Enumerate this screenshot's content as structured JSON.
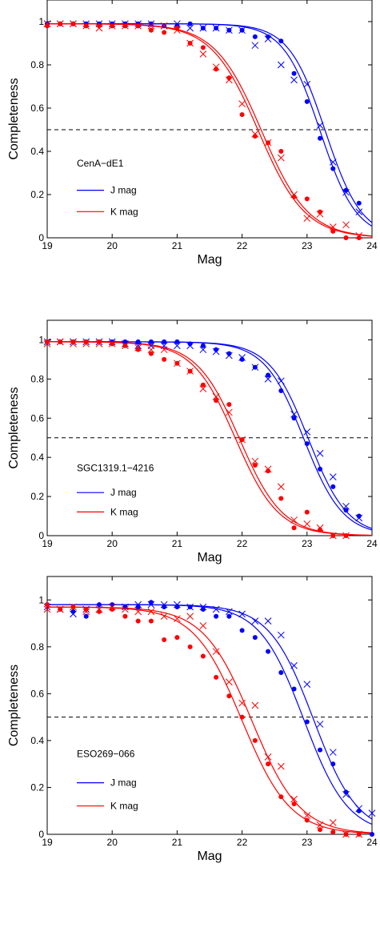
{
  "chart_data": [
    {
      "type": "scatter",
      "annotation": "CenA−dE1",
      "xlabel": "Mag",
      "ylabel": "Completeness",
      "xlim": [
        19,
        24
      ],
      "ylim": [
        0,
        1.1
      ],
      "xticks": [
        "19",
        "20",
        "21",
        "22",
        "23",
        "24"
      ],
      "yticks": [
        "0",
        "0.2",
        "0.4",
        "0.6",
        "0.8",
        "1"
      ],
      "reference_line_y": 0.5,
      "legend": [
        "J mag",
        "K mag"
      ],
      "colors": {
        "J": "#0000ff",
        "K": "#ff0000",
        "ref": "#000000"
      },
      "series": [
        {
          "name": "J mag",
          "color": "#0000ff",
          "marker": "dot",
          "x": [
            19.0,
            19.2,
            19.4,
            19.6,
            19.8,
            20.0,
            20.2,
            20.4,
            20.6,
            20.8,
            21.0,
            21.2,
            21.4,
            21.6,
            21.8,
            22.0,
            22.2,
            22.4,
            22.6,
            22.8,
            23.0,
            23.2,
            23.4,
            23.6,
            23.8
          ],
          "y": [
            0.99,
            0.99,
            0.99,
            0.99,
            0.99,
            0.99,
            0.99,
            0.99,
            0.99,
            0.98,
            0.98,
            0.99,
            0.97,
            0.97,
            0.96,
            0.96,
            0.93,
            0.93,
            0.91,
            0.76,
            0.63,
            0.46,
            0.32,
            0.22,
            0.16
          ]
        },
        {
          "name": "J mag",
          "color": "#0000ff",
          "marker": "cross",
          "x": [
            19.0,
            19.2,
            19.4,
            19.6,
            19.8,
            20.0,
            20.2,
            20.4,
            20.6,
            20.8,
            21.0,
            21.2,
            21.4,
            21.6,
            21.8,
            22.0,
            22.2,
            22.4,
            22.6,
            22.8,
            23.0,
            23.2,
            23.4,
            23.6,
            23.8
          ],
          "y": [
            0.99,
            0.99,
            0.99,
            0.99,
            0.99,
            0.99,
            0.99,
            0.99,
            0.99,
            0.98,
            0.99,
            0.97,
            0.97,
            0.97,
            0.96,
            0.96,
            0.89,
            0.92,
            0.8,
            0.73,
            0.71,
            0.52,
            0.35,
            0.21,
            0.12
          ]
        },
        {
          "name": "K mag",
          "color": "#ff0000",
          "marker": "dot",
          "x": [
            19.0,
            19.2,
            19.4,
            19.6,
            19.8,
            20.0,
            20.2,
            20.4,
            20.6,
            20.8,
            21.0,
            21.2,
            21.4,
            21.6,
            21.8,
            22.0,
            22.2,
            22.4,
            22.6,
            22.8,
            23.0,
            23.2,
            23.4,
            23.6,
            23.8
          ],
          "y": [
            0.98,
            0.99,
            0.99,
            0.98,
            0.98,
            0.98,
            0.98,
            0.98,
            0.96,
            0.95,
            0.97,
            0.9,
            0.88,
            0.78,
            0.74,
            0.57,
            0.47,
            0.44,
            0.4,
            0.19,
            0.18,
            0.12,
            0.03,
            0.0,
            0.0
          ]
        },
        {
          "name": "K mag",
          "color": "#ff0000",
          "marker": "cross",
          "x": [
            19.0,
            19.2,
            19.4,
            19.6,
            19.8,
            20.0,
            20.2,
            20.4,
            20.6,
            20.8,
            21.0,
            21.2,
            21.4,
            21.6,
            21.8,
            22.0,
            22.2,
            22.4,
            22.6,
            22.8,
            23.0,
            23.2,
            23.4,
            23.6,
            23.8
          ],
          "y": [
            0.99,
            0.99,
            0.99,
            0.98,
            0.97,
            0.98,
            0.98,
            0.98,
            0.98,
            0.98,
            0.96,
            0.9,
            0.85,
            0.79,
            0.73,
            0.62,
            0.48,
            0.44,
            0.37,
            0.2,
            0.09,
            0.11,
            0.05,
            0.06,
            0.01
          ]
        }
      ],
      "fits": [
        {
          "name": "J mag",
          "color": "#0000ff",
          "curves": [
            {
              "m50": 23.2,
              "w": 0.28,
              "a": 0.99
            },
            {
              "m50": 23.28,
              "w": 0.28,
              "a": 0.99
            }
          ]
        },
        {
          "name": "K mag",
          "color": "#ff0000",
          "curves": [
            {
              "m50": 22.25,
              "w": 0.36,
              "a": 0.99
            },
            {
              "m50": 22.3,
              "w": 0.36,
              "a": 0.99
            }
          ]
        }
      ]
    },
    {
      "type": "scatter",
      "annotation": "SGC1319.1−4216",
      "xlabel": "Mag",
      "ylabel": "Completeness",
      "xlim": [
        19,
        24
      ],
      "ylim": [
        0,
        1.1
      ],
      "xticks": [
        "19",
        "20",
        "21",
        "22",
        "23",
        "24"
      ],
      "yticks": [
        "0",
        "0.2",
        "0.4",
        "0.6",
        "0.8",
        "1"
      ],
      "reference_line_y": 0.5,
      "legend": [
        "J mag",
        "K mag"
      ],
      "colors": {
        "J": "#0000ff",
        "K": "#ff0000",
        "ref": "#000000"
      },
      "series": [
        {
          "name": "J mag",
          "color": "#0000ff",
          "marker": "dot",
          "x": [
            19.0,
            19.2,
            19.4,
            19.6,
            19.8,
            20.0,
            20.2,
            20.4,
            20.6,
            20.8,
            21.0,
            21.2,
            21.4,
            21.6,
            21.8,
            22.0,
            22.2,
            22.4,
            22.6,
            22.8,
            23.0,
            23.2,
            23.4,
            23.6,
            23.8
          ],
          "y": [
            0.99,
            0.99,
            0.99,
            0.99,
            0.99,
            0.99,
            0.99,
            0.99,
            0.99,
            0.99,
            0.99,
            0.98,
            0.97,
            0.95,
            0.93,
            0.9,
            0.86,
            0.82,
            0.74,
            0.6,
            0.47,
            0.34,
            0.25,
            0.13,
            0.1
          ]
        },
        {
          "name": "J mag",
          "color": "#0000ff",
          "marker": "cross",
          "x": [
            19.0,
            19.2,
            19.4,
            19.6,
            19.8,
            20.0,
            20.2,
            20.4,
            20.6,
            20.8,
            21.0,
            21.2,
            21.4,
            21.6,
            21.8,
            22.0,
            22.2,
            22.4,
            22.6,
            22.8,
            23.0,
            23.2,
            23.4,
            23.6,
            23.8
          ],
          "y": [
            0.99,
            0.99,
            0.99,
            0.99,
            0.99,
            0.99,
            0.98,
            0.97,
            0.97,
            0.97,
            0.97,
            0.97,
            0.95,
            0.94,
            0.92,
            0.91,
            0.86,
            0.8,
            0.79,
            0.62,
            0.53,
            0.42,
            0.3,
            0.15,
            0.09
          ]
        },
        {
          "name": "K mag",
          "color": "#ff0000",
          "marker": "dot",
          "x": [
            19.0,
            19.2,
            19.4,
            19.6,
            19.8,
            20.0,
            20.2,
            20.4,
            20.6,
            20.8,
            21.0,
            21.2,
            21.4,
            21.6,
            21.8,
            22.0,
            22.2,
            22.4,
            22.6,
            22.8,
            23.0,
            23.2,
            23.4,
            23.6
          ],
          "y": [
            0.99,
            0.99,
            0.99,
            0.99,
            0.99,
            0.98,
            0.97,
            0.95,
            0.93,
            0.9,
            0.88,
            0.84,
            0.77,
            0.69,
            0.67,
            0.49,
            0.36,
            0.33,
            0.19,
            0.04,
            0.12,
            0.03,
            0.0,
            0.0
          ]
        },
        {
          "name": "K mag",
          "color": "#ff0000",
          "marker": "cross",
          "x": [
            19.0,
            19.2,
            19.4,
            19.6,
            19.8,
            20.0,
            20.2,
            20.4,
            20.6,
            20.8,
            21.0,
            21.2,
            21.4,
            21.6,
            21.8,
            22.0,
            22.2,
            22.4,
            22.6,
            22.8,
            23.0,
            23.2,
            23.4,
            23.6
          ],
          "y": [
            0.98,
            0.99,
            0.98,
            0.98,
            0.98,
            0.98,
            0.97,
            0.96,
            0.95,
            0.95,
            0.88,
            0.84,
            0.75,
            0.71,
            0.63,
            0.49,
            0.38,
            0.34,
            0.25,
            0.08,
            0.06,
            0.04,
            0.0,
            0.0
          ]
        }
      ],
      "fits": [
        {
          "name": "J mag",
          "color": "#0000ff",
          "curves": [
            {
              "m50": 22.95,
              "w": 0.3,
              "a": 0.99
            },
            {
              "m50": 23.02,
              "w": 0.3,
              "a": 0.99
            }
          ]
        },
        {
          "name": "K mag",
          "color": "#ff0000",
          "curves": [
            {
              "m50": 21.9,
              "w": 0.33,
              "a": 0.99
            },
            {
              "m50": 21.96,
              "w": 0.33,
              "a": 0.99
            }
          ]
        }
      ]
    },
    {
      "type": "scatter",
      "annotation": "ESO269−066",
      "xlabel": "Mag",
      "ylabel": "Completeness",
      "xlim": [
        19,
        24
      ],
      "ylim": [
        0,
        1.1
      ],
      "xticks": [
        "19",
        "20",
        "21",
        "22",
        "23",
        "24"
      ],
      "yticks": [
        "0",
        "0.2",
        "0.4",
        "0.6",
        "0.8",
        "1"
      ],
      "reference_line_y": 0.5,
      "legend": [
        "J mag",
        "K mag"
      ],
      "colors": {
        "J": "#0000ff",
        "K": "#ff0000",
        "ref": "#000000"
      },
      "series": [
        {
          "name": "J mag",
          "color": "#0000ff",
          "marker": "dot",
          "x": [
            19.0,
            19.2,
            19.4,
            19.6,
            19.8,
            20.0,
            20.2,
            20.4,
            20.6,
            20.8,
            21.0,
            21.2,
            21.4,
            21.6,
            21.8,
            22.0,
            22.2,
            22.4,
            22.6,
            22.8,
            23.0,
            23.2,
            23.4,
            23.6,
            23.8,
            24.0
          ],
          "y": [
            0.98,
            0.96,
            0.95,
            0.93,
            0.98,
            0.98,
            0.97,
            0.97,
            0.99,
            0.97,
            0.97,
            0.97,
            0.96,
            0.93,
            0.93,
            0.87,
            0.84,
            0.78,
            0.69,
            0.62,
            0.48,
            0.36,
            0.3,
            0.18,
            0.1,
            0.0
          ]
        },
        {
          "name": "J mag",
          "color": "#0000ff",
          "marker": "cross",
          "x": [
            19.0,
            19.2,
            19.4,
            19.6,
            19.8,
            20.0,
            20.2,
            20.4,
            20.6,
            20.8,
            21.0,
            21.2,
            21.4,
            21.6,
            21.8,
            22.0,
            22.2,
            22.4,
            22.6,
            22.8,
            23.0,
            23.2,
            23.4,
            23.6,
            23.8,
            24.0
          ],
          "y": [
            0.97,
            0.96,
            0.94,
            0.96,
            0.96,
            0.97,
            0.97,
            0.98,
            0.98,
            0.98,
            0.98,
            0.97,
            0.97,
            0.96,
            0.95,
            0.94,
            0.91,
            0.91,
            0.85,
            0.72,
            0.64,
            0.47,
            0.35,
            0.17,
            0.11,
            0.09
          ]
        },
        {
          "name": "K mag",
          "color": "#ff0000",
          "marker": "dot",
          "x": [
            19.0,
            19.2,
            19.4,
            19.6,
            19.8,
            20.0,
            20.2,
            20.4,
            20.6,
            20.8,
            21.0,
            21.2,
            21.4,
            21.6,
            21.8,
            22.0,
            22.2,
            22.4,
            22.6,
            22.8,
            23.0,
            23.2,
            23.4,
            23.6,
            23.8
          ],
          "y": [
            0.98,
            0.96,
            0.97,
            0.96,
            0.95,
            0.96,
            0.93,
            0.91,
            0.91,
            0.83,
            0.84,
            0.8,
            0.76,
            0.67,
            0.59,
            0.5,
            0.4,
            0.3,
            0.16,
            0.13,
            0.06,
            0.02,
            0.01,
            0.0,
            0.0
          ]
        },
        {
          "name": "K mag",
          "color": "#ff0000",
          "marker": "cross",
          "x": [
            19.0,
            19.2,
            19.4,
            19.6,
            19.8,
            20.0,
            20.2,
            20.4,
            20.6,
            20.8,
            21.0,
            21.2,
            21.4,
            21.6,
            21.8,
            22.0,
            22.2,
            22.4,
            22.6,
            22.8,
            23.0,
            23.2,
            23.4,
            23.6,
            23.8
          ],
          "y": [
            0.96,
            0.96,
            0.97,
            0.95,
            0.96,
            0.97,
            0.96,
            0.95,
            0.95,
            0.93,
            0.92,
            0.93,
            0.89,
            0.78,
            0.65,
            0.56,
            0.55,
            0.33,
            0.29,
            0.15,
            0.08,
            0.04,
            0.05,
            0.0,
            0.0
          ]
        }
      ],
      "fits": [
        {
          "name": "J mag",
          "color": "#0000ff",
          "curves": [
            {
              "m50": 22.95,
              "w": 0.34,
              "a": 0.98
            },
            {
              "m50": 23.1,
              "w": 0.34,
              "a": 0.98
            }
          ]
        },
        {
          "name": "K mag",
          "color": "#ff0000",
          "curves": [
            {
              "m50": 22.0,
              "w": 0.37,
              "a": 0.97
            },
            {
              "m50": 22.15,
              "w": 0.37,
              "a": 0.97
            }
          ]
        }
      ]
    }
  ]
}
